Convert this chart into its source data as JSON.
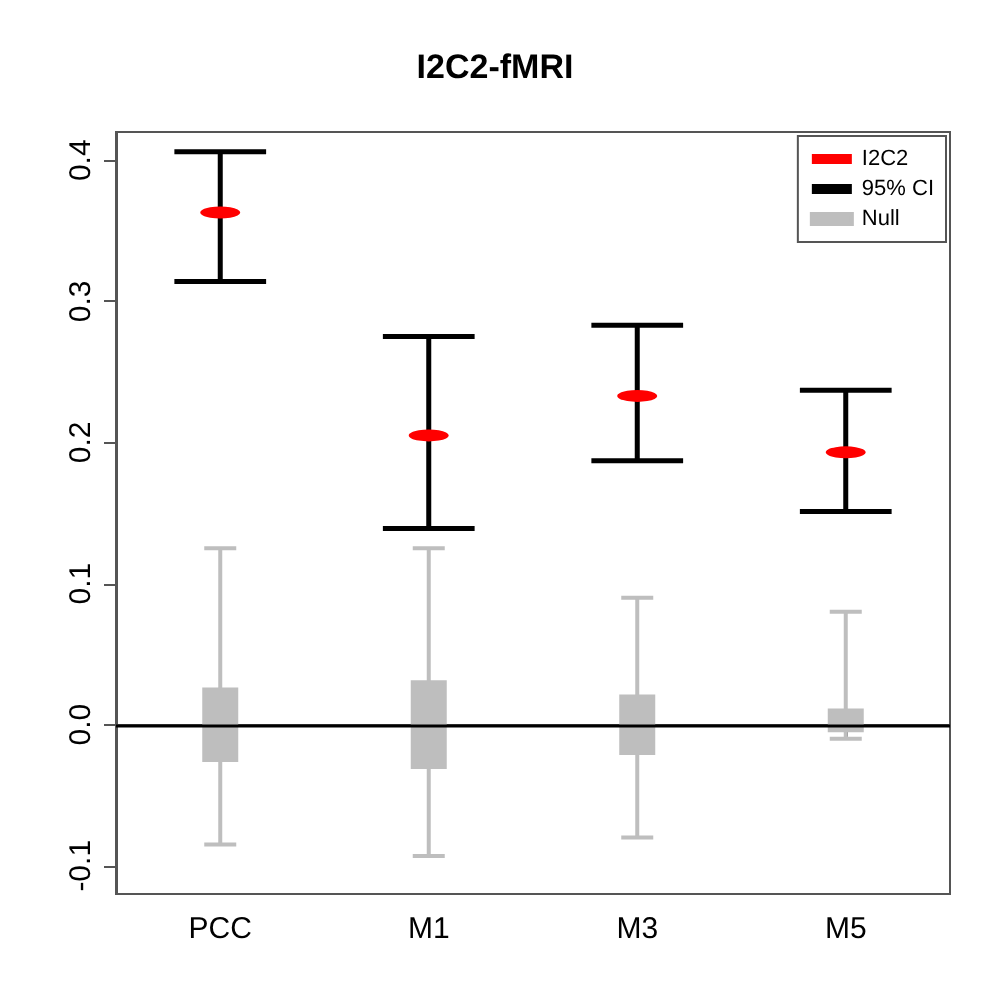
{
  "chart_data": {
    "type": "scatter",
    "title": "I2C2-fMRI",
    "categories": [
      "PCC",
      "M1",
      "M3",
      "M5"
    ],
    "series": [
      {
        "name": "I2C2",
        "color": "#ff0000",
        "values": [
          0.363,
          0.205,
          0.233,
          0.193
        ],
        "errors": [
          [
            0.314,
            0.406
          ],
          [
            0.139,
            0.275
          ],
          [
            0.187,
            0.283
          ],
          [
            0.151,
            0.237
          ]
        ]
      },
      {
        "name": "95% CI",
        "color": "#000000",
        "values": [
          null,
          null,
          null,
          null
        ]
      },
      {
        "name": "Null",
        "color": "#bebebe",
        "type": "box",
        "boxes": [
          {
            "low": -0.085,
            "q1": -0.025,
            "median": 0,
            "q3": 0.025,
            "high": 0.125
          },
          {
            "low": -0.093,
            "q1": -0.03,
            "median": 0,
            "q3": 0.03,
            "high": 0.125
          },
          {
            "low": -0.08,
            "q1": -0.02,
            "median": 0,
            "q3": 0.02,
            "high": 0.09
          },
          {
            "low": -0.01,
            "q1": -0.004,
            "median": 0,
            "q3": 0.01,
            "high": 0.08
          }
        ]
      }
    ],
    "ylim": [
      -0.12,
      0.42
    ],
    "yticks": [
      -0.1,
      {
        "value": 0,
        "label": "0.0"
      },
      0.1,
      0.2,
      0.3,
      0.4
    ],
    "ref_lines": [
      {
        "axis": "y",
        "value": 0,
        "label": null,
        "color": "#000000"
      }
    ],
    "legend": "top right",
    "grid": false
  }
}
